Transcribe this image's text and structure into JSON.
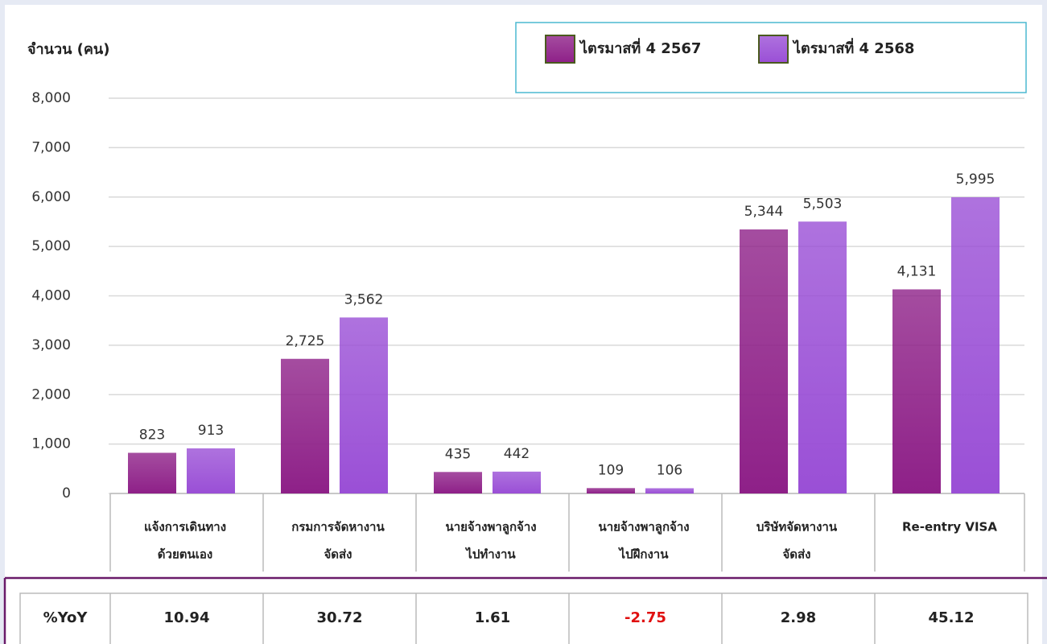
{
  "chart_data": {
    "type": "bar",
    "y_label": "จำนวน (คน)",
    "categories": [
      [
        "แจ้งการเดินทาง",
        "ด้วยตนเอง"
      ],
      [
        "กรมการจัดหางาน",
        "จัดส่ง"
      ],
      [
        "นายจ้างพาลูกจ้าง",
        "ไปทำงาน"
      ],
      [
        "นายจ้างพาลูกจ้าง",
        "ไปฝึกงาน"
      ],
      [
        "บริษัทจัดหางาน",
        "จัดส่ง"
      ],
      [
        "Re-entry VISA"
      ]
    ],
    "series": [
      {
        "name": "ไตรมาสที่ 4 2567",
        "color": "#8e2088",
        "values": [
          823,
          2725,
          435,
          109,
          5344,
          4131
        ],
        "value_labels": [
          "823",
          "2,725",
          "435",
          "109",
          "5,344",
          "4,131"
        ]
      },
      {
        "name": "ไตรมาสที่ 4 2568",
        "color": "#9a4fd6",
        "values": [
          913,
          3562,
          442,
          106,
          5503,
          5995
        ],
        "value_labels": [
          "913",
          "3,562",
          "442",
          "106",
          "5,503",
          "5,995"
        ]
      }
    ],
    "ylim": [
      0,
      8000
    ],
    "yticks": [
      0,
      {
        "value": 1000,
        "label": "1,000"
      },
      {
        "value": 2000,
        "label": "2,000"
      },
      {
        "value": 3000,
        "label": "3,000"
      },
      {
        "value": 4000,
        "label": "4,000"
      },
      {
        "value": 5000,
        "label": "5,000"
      },
      {
        "value": 6000,
        "label": "6,000"
      },
      {
        "value": 7000,
        "label": "7,000"
      },
      {
        "value": 8000,
        "label": "8,000"
      }
    ],
    "grid": true,
    "legend": "top-right",
    "yoy": {
      "label": "%YoY",
      "values": [
        10.94,
        30.72,
        1.61,
        -2.75,
        2.98,
        45.12
      ]
    }
  }
}
